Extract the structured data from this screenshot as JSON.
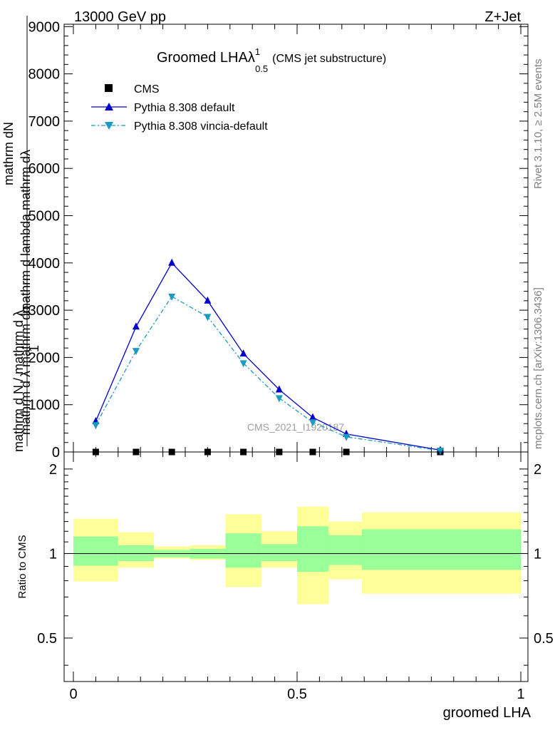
{
  "header": {
    "energy_label": "13000 GeV pp",
    "process_label": "Z+Jet",
    "title_main": "Groomed LHAλ",
    "title_sup": "1",
    "title_sub": "0.5",
    "title_tail": "(CMS jet substructure)",
    "watermark": "CMS_2021_I1920187",
    "side_rivet": "Rivet 3.1.10, ≥ 2.5M events",
    "side_mcplots": "mcplots.cern.ch [arXiv:1306.3436]"
  },
  "axes": {
    "ylabel_top_line1": "mathrm dN",
    "ylabel_top_line2": "mathrm d lambda  mathrm dλ",
    "ylabel_top_line3": "mathrm d λ  mathrm dσ",
    "ylabel_one": "1",
    "ylabel_bottom": "mathrm d N  /  mathrm d λ",
    "ratio_ylabel": "Ratio to CMS",
    "xlabel": "groomed LHA"
  },
  "colors": {
    "cms": "#000000",
    "default": "#0000cc",
    "vincia": "#1a9bbf",
    "band_outer": "#ffff99",
    "band_inner": "#99ff99"
  },
  "chart_data": [
    {
      "type": "line",
      "title": "Groomed LHA λ^1_0.5 (CMS jet substructure)",
      "xlabel": "groomed LHA",
      "ylabel": "1/N dN/dλ",
      "xlim": [
        0,
        1
      ],
      "ylim": [
        0,
        9000
      ],
      "y_ticks": [
        0,
        1000,
        2000,
        3000,
        4000,
        5000,
        6000,
        7000,
        8000,
        9000
      ],
      "y_tick_labels": [
        "0",
        "1000",
        "2000",
        "3000",
        "4000",
        "5000",
        "6000",
        "7000",
        "8000",
        "9000"
      ],
      "x_ticks": [
        0,
        0.5,
        1
      ],
      "x_tick_labels": [
        "0",
        "0.5",
        "1"
      ],
      "legend_position": "top-left",
      "series": [
        {
          "name": "CMS",
          "marker": "square",
          "x": [
            0.05,
            0.14,
            0.22,
            0.3,
            0.38,
            0.46,
            0.535,
            0.61,
            0.82
          ],
          "y": [
            0,
            0,
            0,
            0,
            0,
            0,
            0,
            0,
            0
          ]
        },
        {
          "name": "Pythia 8.308 default",
          "marker": "triangle-up",
          "x": [
            0.05,
            0.14,
            0.22,
            0.3,
            0.38,
            0.46,
            0.535,
            0.61,
            0.82
          ],
          "y": [
            650,
            2650,
            4000,
            3200,
            2080,
            1320,
            730,
            380,
            40
          ]
        },
        {
          "name": "Pythia 8.308 vincia-default",
          "marker": "triangle-down",
          "x": [
            0.05,
            0.14,
            0.22,
            0.3,
            0.38,
            0.46,
            0.535,
            0.61,
            0.82
          ],
          "y": [
            570,
            2140,
            3290,
            2860,
            1880,
            1140,
            630,
            320,
            30
          ]
        }
      ]
    },
    {
      "type": "area",
      "ylabel": "Ratio to CMS",
      "xlim": [
        0,
        1
      ],
      "ylim": [
        0.35,
        2.3
      ],
      "y_ticks": [
        0.5,
        1,
        2
      ],
      "y_tick_labels": [
        "0.5",
        "1",
        "2"
      ],
      "log_y": true,
      "reference_line": 1,
      "bins": [
        {
          "x0": 0.0,
          "x1": 0.1,
          "inner": [
            0.905,
            1.15
          ],
          "outer": [
            0.795,
            1.33
          ]
        },
        {
          "x0": 0.1,
          "x1": 0.18,
          "inner": [
            0.94,
            1.07
          ],
          "outer": [
            0.89,
            1.19
          ]
        },
        {
          "x0": 0.18,
          "x1": 0.26,
          "inner": [
            0.97,
            1.03
          ],
          "outer": [
            0.96,
            1.06
          ]
        },
        {
          "x0": 0.26,
          "x1": 0.34,
          "inner": [
            0.96,
            1.04
          ],
          "outer": [
            0.95,
            1.07
          ]
        },
        {
          "x0": 0.34,
          "x1": 0.42,
          "inner": [
            0.89,
            1.18
          ],
          "outer": [
            0.76,
            1.38
          ]
        },
        {
          "x0": 0.42,
          "x1": 0.5,
          "inner": [
            0.94,
            1.08
          ],
          "outer": [
            0.89,
            1.2
          ]
        },
        {
          "x0": 0.5,
          "x1": 0.57,
          "inner": [
            0.86,
            1.25
          ],
          "outer": [
            0.66,
            1.47
          ]
        },
        {
          "x0": 0.57,
          "x1": 0.645,
          "inner": [
            0.91,
            1.16
          ],
          "outer": [
            0.81,
            1.3
          ]
        },
        {
          "x0": 0.645,
          "x1": 1.0,
          "inner": [
            0.875,
            1.22
          ],
          "outer": [
            0.72,
            1.4
          ]
        }
      ]
    }
  ]
}
